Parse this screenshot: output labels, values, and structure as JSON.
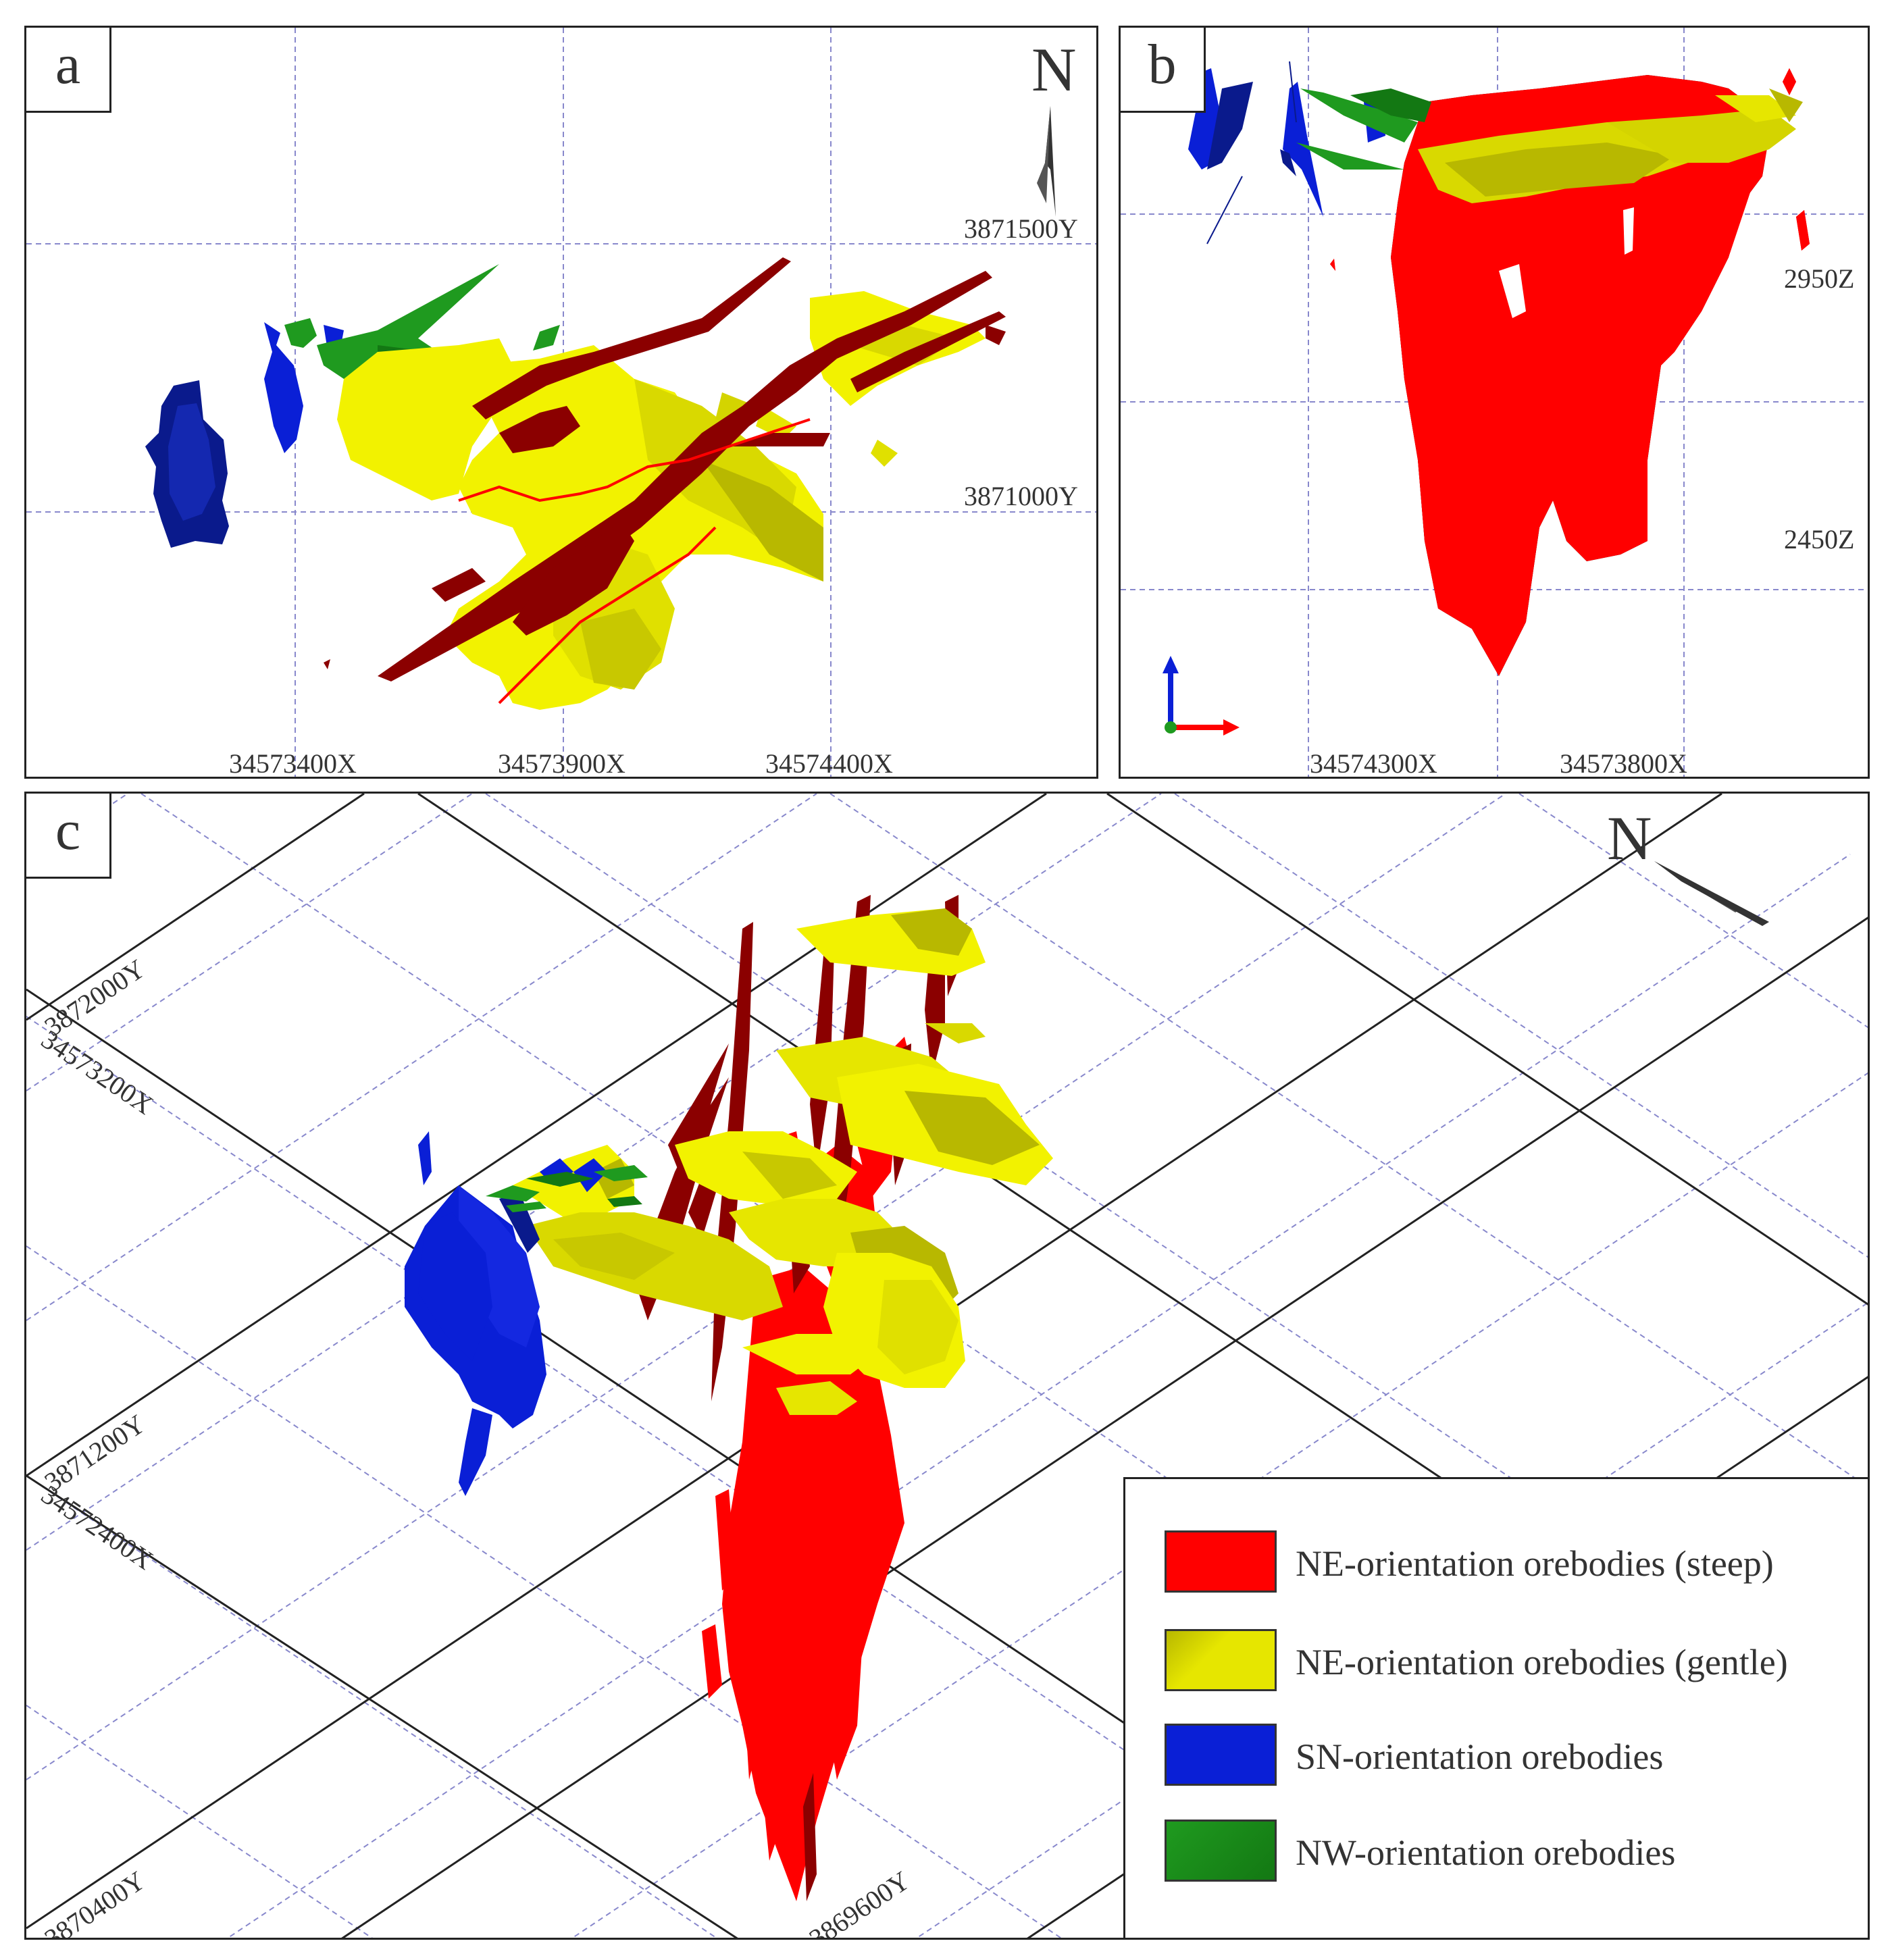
{
  "panels": {
    "a": {
      "label": "a",
      "north": "N",
      "y_labels": [
        "3871500Y",
        "3871000Y"
      ],
      "x_labels": [
        "34573400X",
        "34573900X",
        "34574400X"
      ]
    },
    "b": {
      "label": "b",
      "z_labels": [
        "2950Z",
        "2450Z"
      ],
      "x_labels": [
        "34574300X",
        "34573800X"
      ]
    },
    "c": {
      "label": "c",
      "north": "N",
      "grid_labels": [
        "3872000Y",
        "34573200X",
        "3871200Y",
        "34572400X",
        "3870400Y",
        "3869600Y"
      ]
    }
  },
  "legend": [
    {
      "label": "NE-orientation orebodies (steep)",
      "color": "#ff0000"
    },
    {
      "label": "NE-orientation orebodies (gentle)",
      "color": "#e6e600"
    },
    {
      "label": "SN-orientation orebodies",
      "color": "#0000ee"
    },
    {
      "label": "NW-orientation orebodies",
      "color": "#1a8a1a"
    }
  ],
  "colors": {
    "steep": "#ff0000",
    "gentle": "#f2f200",
    "gentle_shade": "#b8b800",
    "sn": "#0a1fd6",
    "sn_dark": "#0a1a8c",
    "nw": "#1f9a1f",
    "fault": "#8b0000",
    "gridline": "#8888cc",
    "frame": "#222222"
  },
  "icons": {
    "north_arrow": "north-arrow-icon",
    "axis_triad": "axis-triad-icon"
  }
}
